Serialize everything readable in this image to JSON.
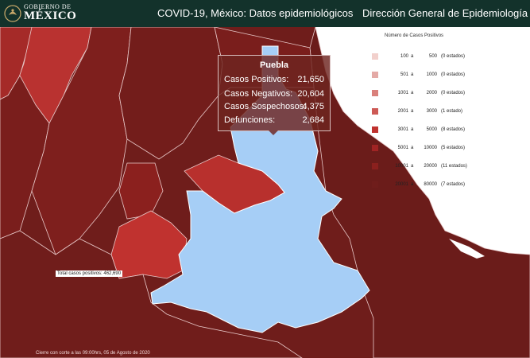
{
  "header": {
    "logo_line1": "GOBIERNO DE",
    "logo_line2": "MÉXICO",
    "title": "COVID-19, México: Datos epidemiológicos",
    "subtitle": "Dirección General de Epidemiología"
  },
  "legend": {
    "title": "Número de Casos Positivos",
    "items": [
      {
        "from": "100",
        "to": "500",
        "count": "(0 estados)",
        "color": "#f2d0cc"
      },
      {
        "from": "501",
        "to": "1000",
        "count": "(0 estados)",
        "color": "#e4aaa6"
      },
      {
        "from": "1001",
        "to": "2000",
        "count": "(0 estados)",
        "color": "#d9807b"
      },
      {
        "from": "2001",
        "to": "3000",
        "count": "(1 estado)",
        "color": "#cd5a55"
      },
      {
        "from": "3001",
        "to": "5000",
        "count": "(8 estados)",
        "color": "#c0322f"
      },
      {
        "from": "5001",
        "to": "10000",
        "count": "(5 estados)",
        "color": "#a02424"
      },
      {
        "from": "10001",
        "to": "20000",
        "count": "(11 estados)",
        "color": "#8b201e"
      },
      {
        "from": "20001",
        "to": "80000",
        "count": "(7 estados)",
        "color": "#6f1d1b"
      }
    ],
    "separator": "a"
  },
  "tooltip": {
    "state": "Puebla",
    "rows": [
      {
        "label": "Casos Positivos:",
        "value": "21,650"
      },
      {
        "label": "Casos Negativos:",
        "value": "20,604"
      },
      {
        "label": "Casos Sospechosos:",
        "value": "4,375"
      },
      {
        "label": "Defunciones:",
        "value": "2,684"
      }
    ]
  },
  "total_label": "Total casos positivos: 462,690",
  "footer": "Cierre con corte a las 09:00hrs, 05 de Agosto de 2020",
  "colors": {
    "header_bg": "#13322b",
    "selected_state": "#a6cef6",
    "state_border": "#e8c9c9"
  }
}
